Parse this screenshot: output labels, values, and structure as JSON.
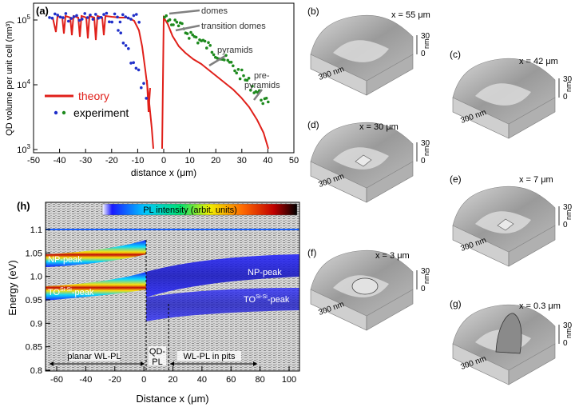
{
  "panel_a": {
    "label": "(a)",
    "ylabel": "QD volume per unit cell (nm³)",
    "xlabel": "distance x (μm)",
    "xticks": [
      "-50",
      "-40",
      "-30",
      "-20",
      "-10",
      "0",
      "10",
      "20",
      "30",
      "40",
      "50"
    ],
    "yticks": [
      {
        "base": "10",
        "exp": "3"
      },
      {
        "base": "10",
        "exp": "4"
      },
      {
        "base": "10",
        "exp": "5"
      }
    ],
    "legend": {
      "theory": "theory",
      "experiment": "experiment"
    },
    "annotations": {
      "domes": "domes",
      "transition": "transition domes",
      "pyramids": "pyramids",
      "pre1": "pre-",
      "pre2": "pyramids"
    },
    "colors": {
      "theory": "#e0201a",
      "left_points": "#1f2fc9",
      "right_points": "#1e8a1e",
      "arrow": "#808080"
    }
  },
  "panel_h": {
    "label": "(h)",
    "ylabel": "Energy (eV)",
    "xlabel": "Distance x (μm)",
    "colorbar": "PL intensity (arbit. units)",
    "xticks": [
      "-60",
      "-40",
      "-20",
      "0",
      "20",
      "40",
      "60",
      "80",
      "100"
    ],
    "yticks": [
      "0.8",
      "0.85",
      "0.9",
      "0.95",
      "1.0",
      "1.05",
      "1.1"
    ],
    "peaks": {
      "np_left": "NP-peak",
      "to_left": "TO",
      "to_sup": "Si-Si",
      "to_suffix": "-peak",
      "np_right": "NP-peak",
      "to_right": "TO",
      "to_right_sup": "Si-Si",
      "to_right_suffix": "-peak"
    },
    "regions": {
      "planar": "planar WL-PL",
      "qd1": "QD-",
      "qd2": "PL",
      "pits": "WL-PL in pits"
    }
  },
  "afm_panels": [
    {
      "label": "(b)",
      "x": "x = 55 μm"
    },
    {
      "label": "(c)",
      "x": "x = 42 μm"
    },
    {
      "label": "(d)",
      "x": "x = 30 μm"
    },
    {
      "label": "(e)",
      "x": "x = 7 μm"
    },
    {
      "label": "(f)",
      "x": "x = 3 μm"
    },
    {
      "label": "(g)",
      "x": "x = 0.3 μm"
    }
  ],
  "afm_scale": {
    "lateral": "300 nm",
    "z30": "30",
    "z0": "0",
    "unit": "nm"
  }
}
